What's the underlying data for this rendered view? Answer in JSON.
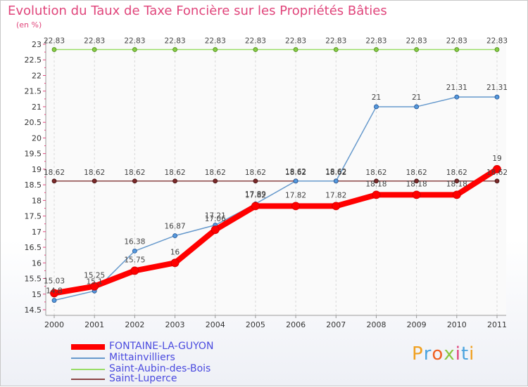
{
  "title": "Evolution du Taux de Taxe Foncière sur les Propriétés Bâties",
  "unit": "(en %)",
  "logo_text": "Proxiti",
  "chart_data": {
    "type": "line",
    "title": "Evolution du Taux de Taxe Foncière sur les Propriétés Bâties",
    "ylabel": "(en %)",
    "xlabel": "",
    "ylim": [
      14.5,
      23
    ],
    "yticks": [
      "14.5",
      "15",
      "15.5",
      "16",
      "16.5",
      "17",
      "17.5",
      "18",
      "18.5",
      "19",
      "19.5",
      "20",
      "20.5",
      "21",
      "21.5",
      "22",
      "22.5",
      "23"
    ],
    "categories": [
      "2000",
      "2001",
      "2002",
      "2003",
      "2004",
      "2005",
      "2006",
      "2007",
      "2008",
      "2009",
      "2010",
      "2011"
    ],
    "series": [
      {
        "name": "FONTAINE-LA-GUYON",
        "color": "#ff0000",
        "values": [
          15.03,
          15.25,
          15.75,
          16,
          17.06,
          17.82,
          17.82,
          17.82,
          18.18,
          18.18,
          18.18,
          19
        ],
        "labels": [
          "15.03",
          "15.25",
          "15.75",
          "16",
          "17.06",
          "17.82",
          "17.82",
          "17.82",
          "18.18",
          "18.18",
          "18.18",
          "19"
        ]
      },
      {
        "name": "Mittainvilliers",
        "color": "#6699cc",
        "values": [
          14.8,
          15.1,
          16.38,
          16.87,
          17.21,
          17.89,
          18.62,
          18.62,
          21,
          21,
          21.31,
          21.31
        ],
        "labels": [
          "14.8",
          "15.1",
          "16.38",
          "16.87",
          "17.21",
          "17.89",
          "18.62",
          "18.62",
          "21",
          "21",
          "21.31",
          "21.31"
        ]
      },
      {
        "name": "Saint-Aubin-des-Bois",
        "color": "#99dd66",
        "values": [
          22.83,
          22.83,
          22.83,
          22.83,
          22.83,
          22.83,
          22.83,
          22.83,
          22.83,
          22.83,
          22.83,
          22.83
        ],
        "labels": [
          "22.83",
          "22.83",
          "22.83",
          "22.83",
          "22.83",
          "22.83",
          "22.83",
          "22.83",
          "22.83",
          "22.83",
          "22.83",
          "22.83"
        ]
      },
      {
        "name": "Saint-Luperce",
        "color": "#8b4444",
        "values": [
          18.62,
          18.62,
          18.62,
          18.62,
          18.62,
          18.62,
          18.62,
          18.62,
          18.62,
          18.62,
          18.62,
          18.62
        ],
        "labels": [
          "18.62",
          "18.62",
          "18.62",
          "18.62",
          "18.62",
          "18.62",
          "18.62",
          "18.62",
          "18.62",
          "18.62",
          "18.62",
          "18.62"
        ]
      }
    ]
  }
}
